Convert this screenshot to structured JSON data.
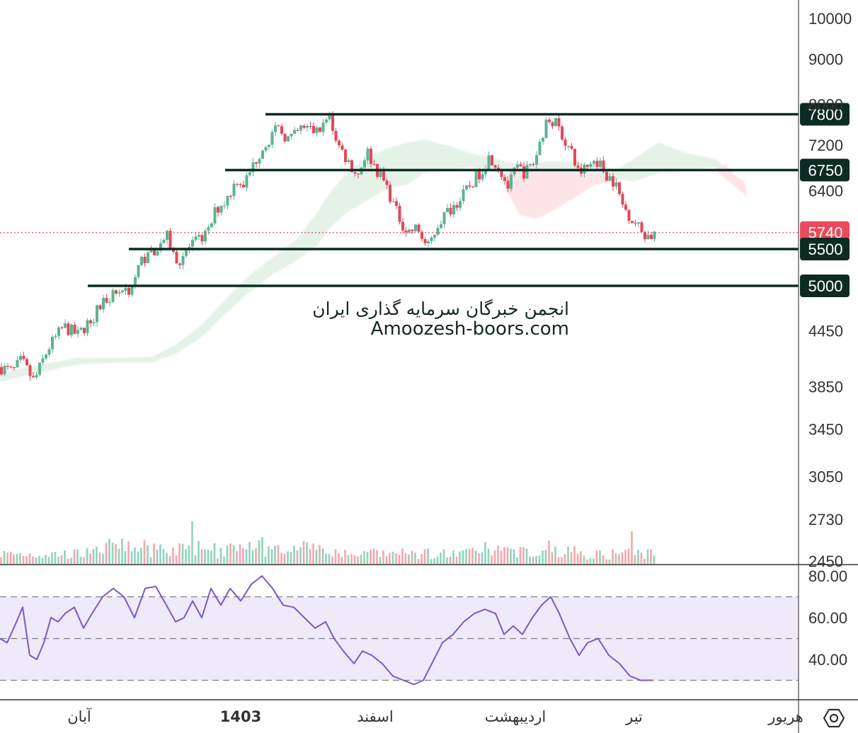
{
  "watermark": {
    "line1": "انجمن خبرگان سرمایه گذاری ایران",
    "line2": "Amoozesh-boors.com"
  },
  "colors": {
    "up": "#5bb491",
    "down": "#e4475a",
    "level_line": "#0d2b22",
    "level_tag_bg": "#0d2b22",
    "price_tag_bg": "#ec4a5d",
    "rsi": "#7e57c2",
    "rsi_band": "#efeafa",
    "cloud_bull": "#e4f2e7",
    "cloud_bear": "#fde4e6",
    "axis_text": "#333333"
  },
  "settings_icon": "hexagon-gear-icon",
  "chart_data": {
    "type": "candlestick",
    "price_axis": {
      "scale": "log",
      "ticks": [
        "10000",
        "9000",
        "8000",
        "7200",
        "6400",
        "5740",
        "4450",
        "3850",
        "3450",
        "3050",
        "2730",
        "2450"
      ]
    },
    "time_axis": {
      "labels": [
        "آبان",
        "1403",
        "اسفند",
        "اردیبهشت",
        "تیر",
        "هریور"
      ]
    },
    "current_price": {
      "label": "5740",
      "value": 5740
    },
    "levels": [
      {
        "label": "7800",
        "value": 7800
      },
      {
        "label": "6750",
        "value": 6750
      },
      {
        "label": "5500",
        "value": 5500
      },
      {
        "label": "5000",
        "value": 5000
      }
    ],
    "price_path_anchors": [
      [
        0,
        4050
      ],
      [
        18,
        4000
      ],
      [
        30,
        4120
      ],
      [
        48,
        3900
      ],
      [
        68,
        4250
      ],
      [
        90,
        4500
      ],
      [
        110,
        4400
      ],
      [
        130,
        4600
      ],
      [
        150,
        4850
      ],
      [
        170,
        4950
      ],
      [
        185,
        4950
      ],
      [
        200,
        5350
      ],
      [
        220,
        5500
      ],
      [
        235,
        5700
      ],
      [
        250,
        5300
      ],
      [
        265,
        5500
      ],
      [
        280,
        5620
      ],
      [
        295,
        5750
      ],
      [
        305,
        6100
      ],
      [
        320,
        6250
      ],
      [
        335,
        6600
      ],
      [
        345,
        6500
      ],
      [
        360,
        6900
      ],
      [
        375,
        7250
      ],
      [
        392,
        7500
      ],
      [
        410,
        7300
      ],
      [
        428,
        7550
      ],
      [
        448,
        7450
      ],
      [
        465,
        7750
      ],
      [
        478,
        7200
      ],
      [
        492,
        6900
      ],
      [
        505,
        6650
      ],
      [
        518,
        7100
      ],
      [
        530,
        6800
      ],
      [
        545,
        6500
      ],
      [
        560,
        6050
      ],
      [
        575,
        5750
      ],
      [
        590,
        5800
      ],
      [
        604,
        5500
      ],
      [
        620,
        5900
      ],
      [
        635,
        6100
      ],
      [
        650,
        6250
      ],
      [
        665,
        6500
      ],
      [
        680,
        6750
      ],
      [
        692,
        7000
      ],
      [
        705,
        6800
      ],
      [
        718,
        6450
      ],
      [
        730,
        6800
      ],
      [
        742,
        6700
      ],
      [
        755,
        6900
      ],
      [
        768,
        7500
      ],
      [
        778,
        7750
      ],
      [
        790,
        7500
      ],
      [
        805,
        7100
      ],
      [
        818,
        6700
      ],
      [
        830,
        6800
      ],
      [
        842,
        6950
      ],
      [
        855,
        6700
      ],
      [
        868,
        6550
      ],
      [
        880,
        6150
      ],
      [
        893,
        5950
      ],
      [
        908,
        5740
      ],
      [
        918,
        5680
      ],
      [
        926,
        5740
      ]
    ],
    "ichimoku_cloud": {
      "bullish_upper": [
        [
          0,
          4000
        ],
        [
          60,
          4080
        ],
        [
          110,
          4150
        ],
        [
          175,
          4150
        ],
        [
          215,
          4160
        ],
        [
          250,
          4300
        ],
        [
          285,
          4520
        ],
        [
          318,
          4820
        ],
        [
          350,
          5120
        ],
        [
          385,
          5380
        ],
        [
          420,
          5650
        ],
        [
          448,
          6050
        ],
        [
          465,
          6350
        ],
        [
          490,
          6700
        ],
        [
          520,
          7000
        ],
        [
          550,
          7150
        ],
        [
          575,
          7250
        ],
        [
          600,
          7300
        ],
        [
          630,
          7200
        ],
        [
          665,
          7050
        ],
        [
          700,
          6950
        ],
        [
          730,
          6850
        ],
        [
          770,
          6900
        ],
        [
          820,
          6900
        ],
        [
          870,
          6750
        ],
        [
          895,
          6950
        ],
        [
          930,
          7250
        ],
        [
          970,
          7050
        ],
        [
          1010,
          6950
        ],
        [
          1020,
          6850
        ]
      ],
      "bullish_lower": [
        [
          0,
          3900
        ],
        [
          60,
          4000
        ],
        [
          110,
          4080
        ],
        [
          175,
          4100
        ],
        [
          215,
          4100
        ],
        [
          250,
          4200
        ],
        [
          285,
          4380
        ],
        [
          318,
          4650
        ],
        [
          350,
          4900
        ],
        [
          385,
          5150
        ],
        [
          420,
          5350
        ],
        [
          448,
          5550
        ],
        [
          465,
          5800
        ],
        [
          490,
          6050
        ],
        [
          520,
          6250
        ],
        [
          550,
          6450
        ],
        [
          575,
          6500
        ],
        [
          600,
          6700
        ],
        [
          630,
          6750
        ],
        [
          665,
          6800
        ],
        [
          700,
          6750
        ],
        [
          730,
          6750
        ],
        [
          770,
          6750
        ],
        [
          820,
          6750
        ],
        [
          870,
          6600
        ],
        [
          895,
          6550
        ],
        [
          930,
          6700
        ],
        [
          970,
          6750
        ],
        [
          1010,
          6800
        ],
        [
          1020,
          6800
        ]
      ],
      "bearish_upper": [
        [
          715,
          6800
        ],
        [
          760,
          6800
        ],
        [
          810,
          6750
        ],
        [
          860,
          6650
        ],
        [
          870,
          6600
        ]
      ],
      "bearish_lower": [
        [
          715,
          6400
        ],
        [
          735,
          6000
        ],
        [
          760,
          5950
        ],
        [
          800,
          6200
        ],
        [
          840,
          6500
        ],
        [
          870,
          6550
        ]
      ],
      "bearish_tail": [
        [
          1012,
          6800
        ],
        [
          1025,
          6850
        ],
        [
          1038,
          6650
        ],
        [
          1052,
          6550
        ],
        [
          1055,
          6300
        ],
        [
          1040,
          6450
        ],
        [
          1025,
          6600
        ],
        [
          1010,
          6750
        ]
      ]
    },
    "volume_spikes": [
      [
        272,
        60
      ],
      [
        372,
        38
      ],
      [
        415,
        26
      ],
      [
        688,
        31
      ],
      [
        776,
        33
      ],
      [
        895,
        46
      ]
    ],
    "rsi": {
      "ticks": [
        "80.00",
        "60.00",
        "40.00"
      ],
      "band": [
        70,
        30
      ],
      "midline": 50,
      "values": [
        [
          0,
          50
        ],
        [
          10,
          48
        ],
        [
          22,
          57
        ],
        [
          32,
          65
        ],
        [
          42,
          42
        ],
        [
          52,
          40
        ],
        [
          62,
          48
        ],
        [
          72,
          60
        ],
        [
          82,
          58
        ],
        [
          92,
          62
        ],
        [
          105,
          65
        ],
        [
          118,
          55
        ],
        [
          130,
          62
        ],
        [
          145,
          70
        ],
        [
          160,
          74
        ],
        [
          175,
          70
        ],
        [
          190,
          60
        ],
        [
          205,
          74
        ],
        [
          220,
          75
        ],
        [
          235,
          66
        ],
        [
          248,
          58
        ],
        [
          260,
          60
        ],
        [
          272,
          68
        ],
        [
          285,
          60
        ],
        [
          298,
          74
        ],
        [
          312,
          66
        ],
        [
          325,
          74
        ],
        [
          340,
          68
        ],
        [
          355,
          76
        ],
        [
          370,
          80
        ],
        [
          385,
          74
        ],
        [
          400,
          66
        ],
        [
          415,
          65
        ],
        [
          430,
          60
        ],
        [
          445,
          55
        ],
        [
          460,
          58
        ],
        [
          472,
          50
        ],
        [
          485,
          44
        ],
        [
          500,
          38
        ],
        [
          512,
          44
        ],
        [
          525,
          42
        ],
        [
          540,
          38
        ],
        [
          555,
          32
        ],
        [
          570,
          30
        ],
        [
          585,
          28
        ],
        [
          598,
          30
        ],
        [
          610,
          38
        ],
        [
          625,
          48
        ],
        [
          640,
          52
        ],
        [
          655,
          58
        ],
        [
          670,
          62
        ],
        [
          685,
          64
        ],
        [
          700,
          62
        ],
        [
          712,
          52
        ],
        [
          725,
          56
        ],
        [
          738,
          52
        ],
        [
          752,
          60
        ],
        [
          765,
          66
        ],
        [
          778,
          70
        ],
        [
          790,
          62
        ],
        [
          805,
          50
        ],
        [
          818,
          42
        ],
        [
          830,
          48
        ],
        [
          845,
          50
        ],
        [
          860,
          42
        ],
        [
          875,
          38
        ],
        [
          890,
          32
        ],
        [
          905,
          30
        ],
        [
          915,
          30
        ],
        [
          922,
          30
        ]
      ]
    }
  }
}
